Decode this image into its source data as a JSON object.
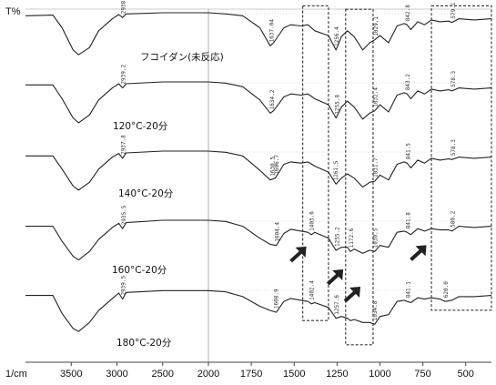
{
  "chart_data": {
    "type": "line",
    "title": "",
    "ylabel": "T%",
    "xlabel": "1/cm",
    "xlim": [
      4000,
      350
    ],
    "x_reversed": true,
    "x_ticks": [
      3500,
      3000,
      2500,
      2000,
      1750,
      1500,
      1250,
      1000,
      750,
      500
    ],
    "x_tick_labels": [
      "3500",
      "3000",
      "2500",
      "2000",
      "1750",
      "1500",
      "1250",
      "1000",
      "750",
      "500"
    ],
    "x_scale_break": 2000,
    "y_scale": "offset spectra, arbitrary transmittance",
    "grid": false,
    "line_color": "#222222",
    "highlight_color": "#333333",
    "series": [
      {
        "name": "フコイダン(未反応)",
        "baseline": 0.0,
        "peak_labels": [
          "2938.33",
          "1637.04",
          "1256.4",
          "1029.1",
          "842.8",
          "579.1"
        ],
        "points": [
          [
            4000,
            0.05
          ],
          [
            3700,
            0.04
          ],
          [
            3600,
            0.25
          ],
          [
            3480,
            0.62
          ],
          [
            3420,
            0.7
          ],
          [
            3300,
            0.58
          ],
          [
            3200,
            0.3
          ],
          [
            3050,
            0.1
          ],
          [
            2980,
            0.03
          ],
          [
            2938,
            0.08
          ],
          [
            2900,
            0.02
          ],
          [
            2500,
            0.0
          ],
          [
            2100,
            0.0
          ],
          [
            2000,
            0.0
          ],
          [
            1900,
            0.02
          ],
          [
            1800,
            0.05
          ],
          [
            1700,
            0.25
          ],
          [
            1640,
            0.55
          ],
          [
            1620,
            0.5
          ],
          [
            1560,
            0.25
          ],
          [
            1520,
            0.2
          ],
          [
            1460,
            0.22
          ],
          [
            1420,
            0.2
          ],
          [
            1380,
            0.3
          ],
          [
            1300,
            0.38
          ],
          [
            1256,
            0.62
          ],
          [
            1225,
            0.4
          ],
          [
            1190,
            0.3
          ],
          [
            1150,
            0.4
          ],
          [
            1100,
            0.62
          ],
          [
            1060,
            0.5
          ],
          [
            1030,
            0.45
          ],
          [
            1000,
            0.38
          ],
          [
            950,
            0.5
          ],
          [
            900,
            0.22
          ],
          [
            860,
            0.18
          ],
          [
            842,
            0.2
          ],
          [
            820,
            0.28
          ],
          [
            780,
            0.15
          ],
          [
            740,
            0.2
          ],
          [
            700,
            0.12
          ],
          [
            650,
            0.15
          ],
          [
            600,
            0.14
          ],
          [
            580,
            0.16
          ],
          [
            540,
            0.1
          ],
          [
            450,
            0.12
          ],
          [
            350,
            0.1
          ]
        ]
      },
      {
        "name": "120°C-20分",
        "baseline": 1.0,
        "peak_labels": [
          "2939.2",
          "1634.2",
          "1255.8",
          "1032.4",
          "843.2",
          "578.3"
        ],
        "points": [
          [
            4000,
            0.05
          ],
          [
            3700,
            0.05
          ],
          [
            3600,
            0.28
          ],
          [
            3480,
            0.6
          ],
          [
            3420,
            0.68
          ],
          [
            3300,
            0.55
          ],
          [
            3200,
            0.3
          ],
          [
            3050,
            0.1
          ],
          [
            2980,
            0.03
          ],
          [
            2938,
            0.1
          ],
          [
            2900,
            0.03
          ],
          [
            2500,
            0.0
          ],
          [
            2100,
            0.0
          ],
          [
            2000,
            0.0
          ],
          [
            1900,
            0.02
          ],
          [
            1800,
            0.08
          ],
          [
            1700,
            0.3
          ],
          [
            1640,
            0.52
          ],
          [
            1620,
            0.48
          ],
          [
            1560,
            0.25
          ],
          [
            1520,
            0.2
          ],
          [
            1460,
            0.22
          ],
          [
            1420,
            0.2
          ],
          [
            1380,
            0.28
          ],
          [
            1300,
            0.38
          ],
          [
            1256,
            0.6
          ],
          [
            1225,
            0.42
          ],
          [
            1190,
            0.32
          ],
          [
            1150,
            0.42
          ],
          [
            1100,
            0.62
          ],
          [
            1060,
            0.52
          ],
          [
            1030,
            0.48
          ],
          [
            1000,
            0.38
          ],
          [
            950,
            0.5
          ],
          [
            900,
            0.22
          ],
          [
            860,
            0.18
          ],
          [
            842,
            0.2
          ],
          [
            820,
            0.28
          ],
          [
            780,
            0.15
          ],
          [
            740,
            0.2
          ],
          [
            700,
            0.12
          ],
          [
            650,
            0.15
          ],
          [
            600,
            0.13
          ],
          [
            580,
            0.15
          ],
          [
            540,
            0.1
          ],
          [
            450,
            0.12
          ],
          [
            350,
            0.1
          ]
        ]
      },
      {
        "name": "140°C-20分",
        "baseline": 2.0,
        "peak_labels": [
          "2937.8",
          "1630.5",
          "1606.7",
          "1261.5",
          "1031.7",
          "841.5",
          "578.3"
        ],
        "points": [
          [
            4000,
            0.08
          ],
          [
            3700,
            0.08
          ],
          [
            3600,
            0.3
          ],
          [
            3480,
            0.58
          ],
          [
            3420,
            0.65
          ],
          [
            3300,
            0.52
          ],
          [
            3200,
            0.3
          ],
          [
            3050,
            0.1
          ],
          [
            2980,
            0.04
          ],
          [
            2938,
            0.12
          ],
          [
            2900,
            0.03
          ],
          [
            2500,
            0.0
          ],
          [
            2100,
            0.0
          ],
          [
            2000,
            0.0
          ],
          [
            1900,
            0.02
          ],
          [
            1800,
            0.08
          ],
          [
            1700,
            0.32
          ],
          [
            1640,
            0.48
          ],
          [
            1610,
            0.45
          ],
          [
            1560,
            0.22
          ],
          [
            1520,
            0.18
          ],
          [
            1460,
            0.2
          ],
          [
            1420,
            0.18
          ],
          [
            1380,
            0.25
          ],
          [
            1300,
            0.35
          ],
          [
            1256,
            0.55
          ],
          [
            1225,
            0.45
          ],
          [
            1190,
            0.38
          ],
          [
            1150,
            0.45
          ],
          [
            1100,
            0.6
          ],
          [
            1060,
            0.52
          ],
          [
            1030,
            0.5
          ],
          [
            1000,
            0.4
          ],
          [
            950,
            0.48
          ],
          [
            900,
            0.22
          ],
          [
            860,
            0.18
          ],
          [
            842,
            0.2
          ],
          [
            820,
            0.28
          ],
          [
            780,
            0.15
          ],
          [
            740,
            0.2
          ],
          [
            700,
            0.12
          ],
          [
            650,
            0.15
          ],
          [
            600,
            0.13
          ],
          [
            580,
            0.14
          ],
          [
            540,
            0.1
          ],
          [
            450,
            0.12
          ],
          [
            350,
            0.1
          ]
        ]
      },
      {
        "name": "160°C-20分",
        "baseline": 3.0,
        "peak_labels": [
          "2935.5",
          "1604.4",
          "1403.6",
          "1255.2",
          "1172.6",
          "1030.5",
          "841.8",
          "580.2"
        ],
        "points": [
          [
            4000,
            0.1
          ],
          [
            3700,
            0.1
          ],
          [
            3600,
            0.35
          ],
          [
            3480,
            0.6
          ],
          [
            3420,
            0.66
          ],
          [
            3300,
            0.52
          ],
          [
            3200,
            0.32
          ],
          [
            3050,
            0.12
          ],
          [
            2980,
            0.05
          ],
          [
            2938,
            0.14
          ],
          [
            2900,
            0.04
          ],
          [
            2500,
            0.0
          ],
          [
            2100,
            0.0
          ],
          [
            2000,
            0.0
          ],
          [
            1900,
            0.02
          ],
          [
            1800,
            0.1
          ],
          [
            1700,
            0.3
          ],
          [
            1640,
            0.4
          ],
          [
            1604,
            0.42
          ],
          [
            1560,
            0.22
          ],
          [
            1520,
            0.15
          ],
          [
            1460,
            0.18
          ],
          [
            1420,
            0.2
          ],
          [
            1400,
            0.24
          ],
          [
            1380,
            0.2
          ],
          [
            1300,
            0.3
          ],
          [
            1256,
            0.5
          ],
          [
            1225,
            0.45
          ],
          [
            1190,
            0.45
          ],
          [
            1172,
            0.52
          ],
          [
            1150,
            0.48
          ],
          [
            1100,
            0.55
          ],
          [
            1060,
            0.5
          ],
          [
            1030,
            0.52
          ],
          [
            1000,
            0.42
          ],
          [
            950,
            0.45
          ],
          [
            900,
            0.2
          ],
          [
            860,
            0.18
          ],
          [
            842,
            0.2
          ],
          [
            820,
            0.24
          ],
          [
            780,
            0.14
          ],
          [
            740,
            0.18
          ],
          [
            700,
            0.14
          ],
          [
            650,
            0.16
          ],
          [
            600,
            0.16
          ],
          [
            580,
            0.18
          ],
          [
            540,
            0.1
          ],
          [
            450,
            0.12
          ],
          [
            350,
            0.1
          ]
        ]
      },
      {
        "name": "180°C-20分",
        "baseline": 4.0,
        "peak_labels": [
          "2939.5",
          "1608.9",
          "1402.4",
          "1257.6",
          "1034.8",
          "841.1",
          "620.0"
        ],
        "points": [
          [
            4000,
            0.1
          ],
          [
            3700,
            0.1
          ],
          [
            3600,
            0.4
          ],
          [
            3480,
            0.65
          ],
          [
            3420,
            0.7
          ],
          [
            3300,
            0.55
          ],
          [
            3200,
            0.35
          ],
          [
            3050,
            0.15
          ],
          [
            2980,
            0.06
          ],
          [
            2938,
            0.16
          ],
          [
            2900,
            0.05
          ],
          [
            2500,
            0.02
          ],
          [
            2100,
            0.02
          ],
          [
            2000,
            0.02
          ],
          [
            1900,
            0.04
          ],
          [
            1800,
            0.12
          ],
          [
            1700,
            0.28
          ],
          [
            1640,
            0.35
          ],
          [
            1604,
            0.38
          ],
          [
            1560,
            0.2
          ],
          [
            1520,
            0.15
          ],
          [
            1460,
            0.18
          ],
          [
            1420,
            0.2
          ],
          [
            1400,
            0.24
          ],
          [
            1380,
            0.22
          ],
          [
            1300,
            0.3
          ],
          [
            1256,
            0.48
          ],
          [
            1225,
            0.45
          ],
          [
            1190,
            0.48
          ],
          [
            1172,
            0.52
          ],
          [
            1150,
            0.5
          ],
          [
            1100,
            0.55
          ],
          [
            1060,
            0.55
          ],
          [
            1030,
            0.58
          ],
          [
            1000,
            0.45
          ],
          [
            950,
            0.42
          ],
          [
            900,
            0.2
          ],
          [
            860,
            0.18
          ],
          [
            842,
            0.2
          ],
          [
            820,
            0.22
          ],
          [
            780,
            0.14
          ],
          [
            740,
            0.16
          ],
          [
            700,
            0.14
          ],
          [
            650,
            0.16
          ],
          [
            620,
            0.2
          ],
          [
            580,
            0.18
          ],
          [
            540,
            0.12
          ],
          [
            450,
            0.12
          ],
          [
            350,
            0.1
          ]
        ]
      }
    ],
    "highlight_regions": [
      {
        "name": "region-1",
        "x_range": [
          1450,
          1300
        ],
        "y_range": [
          -0.1,
          4.45
        ]
      },
      {
        "name": "region-2",
        "x_range": [
          1200,
          1040
        ],
        "y_range": [
          -0.05,
          4.8
        ]
      },
      {
        "name": "region-3",
        "x_range": [
          700,
          350
        ],
        "y_range": [
          -0.1,
          4.3
        ]
      }
    ],
    "arrows": [
      {
        "x": 1445,
        "y": 3.42
      },
      {
        "x": 1230,
        "y": 3.75
      },
      {
        "x": 1130,
        "y": 4.0
      },
      {
        "x": 745,
        "y": 3.4
      }
    ]
  }
}
